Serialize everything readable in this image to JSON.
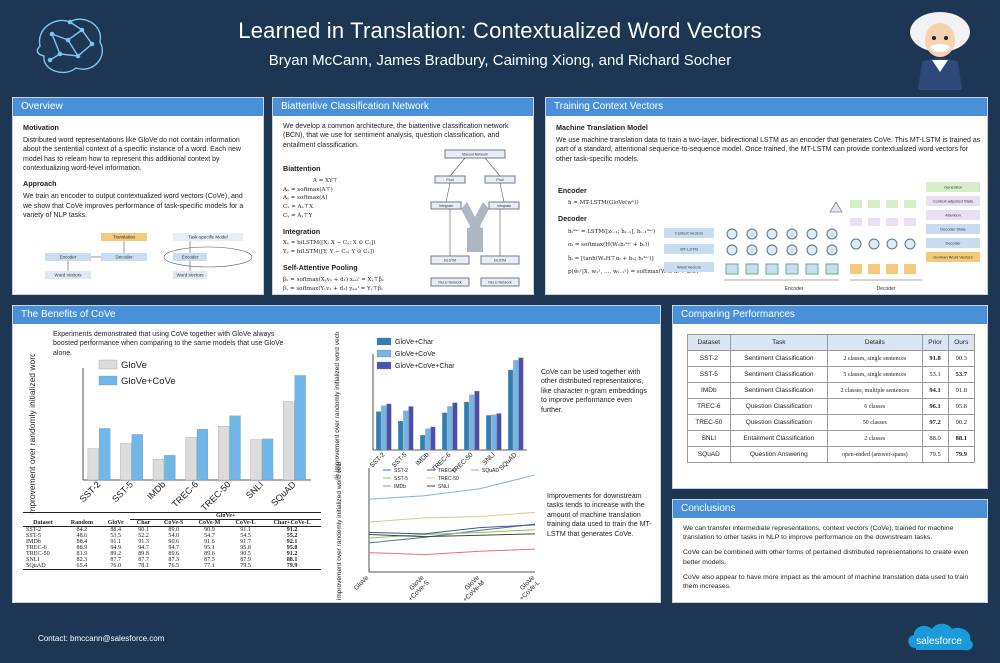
{
  "header": {
    "title": "Learned in Translation: Contextualized Word Vectors",
    "authors": "Bryan McCann, James Bradbury, Caiming Xiong, and Richard Socher"
  },
  "overview": {
    "heading": "Overview",
    "motivation_title": "Motivation",
    "motivation": "Distributed word representations like GloVe do not contain information about the sentential context of a specific instance of a word. Each new model has to relearn how to represent this additional context by contextualizing word-level information.",
    "approach_title": "Approach",
    "approach": "We train an encoder to output contextualized word vectors (CoVe), and we show that CoVe improves performance of task-specific models for a variety of NLP tasks.",
    "fig": {
      "translation": "Translation",
      "decoder": "Decoder",
      "encoder": "Encoder",
      "word_vectors": "Word Vectors",
      "task_model": "Task-specific Model",
      "encoder2": "Encoder",
      "word_vectors2": "Word Vectors"
    }
  },
  "bcn": {
    "heading": "Biattentive Classification Network",
    "intro": "We develop a common architecture, the biattentive classification network (BCN), that we use for sentiment analysis, question classification, and entailment classification.",
    "biattention": "Biattention",
    "integration": "Integration",
    "pooling": "Self-Attentive Pooling",
    "eqs": {
      "a": "A = XY⊤",
      "ax": "Aₓ = softmax(A⊤)",
      "ay": "Aᵧ = softmax(A)",
      "cx": "Cₓ = Aₓ⊤X",
      "cy": "Cᵧ = Aᵧ⊤Y",
      "x": "Xᵧ = biLSTM([X; X − Cᵧ; X ⊙ Cᵧ])",
      "y": "Yᵧ = biLSTM([Y; Y − Cₓ; Y ⊙ Cₓ])",
      "bx": "βₓ = softmax(Xᵧv₁ + d₁)   xₛₑₗᶠ = Xᵧ⊤βₓ",
      "by": "βᵧ = softmax(Yᵧv₁ + d₁)   yₛₑₗᶠ = Yᵧ⊤βᵧ"
    },
    "fig": {
      "maxout": "Maxout Network",
      "pool": "Pool",
      "integrate": "Integrate",
      "bilstm": "biLSTM",
      "relu": "ReLU Network"
    }
  },
  "training": {
    "heading": "Training Context Vectors",
    "mt_title": "Machine Translation Model",
    "mt": "We use machine translation data to train a two-layer, bidirectional LSTM as an encoder that generates CoVe. This MT-LSTM is trained as part of a standard, attentional sequence-to-sequence model. Once trained, the MT-LSTM can provide contextualized word vectors for other task-specific models.",
    "encoder": "Encoder",
    "decoder": "Decoder",
    "enc_eq": "h = MT-LSTM(GloVe(wˣ))",
    "dec_eqs": [
      "hₜᵈᵉᶜ = LSTM([zₜ₋₁; h̃ₜ₋₁], hₜ₋₁ᵈᵉᶜ)",
      "αₜ = softmax(H(W₁hₜᵈᵉᶜ + b₁))",
      "h̃ₜ = [tanh(W₂H⊤αₜ + b₂; hₜᵈᵉᶜ)]",
      "p(ŵₜʸ|X, w₁ʸ, …, wₜ₋₁ʸ) = softmax(Wₒᵤₜ h̃ₜ + bₒᵤₜ)"
    ],
    "fig": {
      "cv": "Context Vectors",
      "mt": "MT-LSTM",
      "wv": "Word Vectors",
      "gen": "Generator",
      "cas": "Context-adjusted State",
      "att": "Attention",
      "ds": "Decoder State",
      "dec": "Decoder",
      "gwv": "German Word Vectors",
      "encl": "Encoder",
      "decl": "Decoder"
    }
  },
  "benefits": {
    "heading": "The Benefits of CoVe",
    "intro": "Experiments demonstrated that using CoVe together with GloVe always boosted performance when comparing to the same models that use GloVe alone.",
    "text2": "CoVe can be used together with other distributed representations, like character n-gram embeddings to improve performance even further.",
    "text3": "Improvements for downstream tasks tends to increase with the amount of machine translation training data used to train the MT-LSTM that generates CoVe."
  },
  "chart_data": [
    {
      "type": "bar",
      "ylabel": "% improvement over randomly initialized word vectors",
      "categories": [
        "SST-2",
        "SST-5",
        "IMDb",
        "TREC-6",
        "TREC-50",
        "SNLI",
        "SQuAD"
      ],
      "ylim": [
        0,
        15
      ],
      "series": [
        {
          "name": "GloVe",
          "values": [
            4.2,
            4.9,
            2.8,
            5.7,
            7.2,
            5.4,
            10.5
          ],
          "color": "#dcdcdc"
        },
        {
          "name": "GloVe+CoVe",
          "values": [
            6.9,
            6.1,
            3.3,
            6.8,
            8.6,
            5.5,
            14.0
          ],
          "color": "#6fb7e8"
        }
      ]
    },
    {
      "type": "bar",
      "ylabel": "% improvement over randomly initialized word vectors",
      "categories": [
        "SST-2",
        "SST-5",
        "IMDb",
        "TREC-6",
        "TREC-50",
        "SNLI",
        "SQuAD"
      ],
      "ylim": [
        0,
        15
      ],
      "series": [
        {
          "name": "GloVe+Char",
          "values": [
            6.0,
            4.5,
            2.3,
            5.8,
            7.5,
            5.4,
            12.5
          ],
          "color": "#2c7fb8"
        },
        {
          "name": "GloVe+CoVe",
          "values": [
            6.9,
            6.1,
            3.3,
            6.8,
            8.6,
            5.5,
            14.0
          ],
          "color": "#74b6e3"
        },
        {
          "name": "GloVe+CoVe+Char",
          "values": [
            7.2,
            6.8,
            3.6,
            7.4,
            9.2,
            5.7,
            14.4
          ],
          "color": "#4b50b0"
        }
      ]
    },
    {
      "type": "line",
      "ylabel": "% improvement over randomly initialized word vectors",
      "x": [
        "GloVe",
        "GloVe +CoVe-S",
        "GloVe +CoVe-M",
        "GloVe +CoVe-L"
      ],
      "ylim": [
        0,
        15
      ],
      "series": [
        {
          "name": "SST-2",
          "values": [
            4.2,
            5.0,
            6.0,
            6.9
          ],
          "color": "#4a6fb5"
        },
        {
          "name": "SST-5",
          "values": [
            4.9,
            5.4,
            5.7,
            6.1
          ],
          "color": "#8bc34a"
        },
        {
          "name": "IMDb",
          "values": [
            2.8,
            2.5,
            3.0,
            3.3
          ],
          "color": "#e57373"
        },
        {
          "name": "TREC-6",
          "values": [
            5.7,
            5.5,
            6.4,
            6.8
          ],
          "color": "#3a5a8c"
        },
        {
          "name": "TREC-50",
          "values": [
            7.2,
            7.8,
            8.0,
            8.6
          ],
          "color": "#e0c48a"
        },
        {
          "name": "SNLI",
          "values": [
            5.4,
            5.1,
            5.3,
            5.5
          ],
          "color": "#444444"
        },
        {
          "name": "SQuAD",
          "values": [
            10.5,
            11.0,
            12.0,
            14.0
          ],
          "color": "#7fb2e5"
        }
      ]
    }
  ],
  "results": {
    "group": "GloVe+",
    "cols": [
      "Dataset",
      "Random",
      "GloVe",
      "Char",
      "CoVe-S",
      "CoVe-M",
      "CoVe-L",
      "Char+CoVe-L"
    ],
    "rows": [
      [
        "SST-2",
        "84.2",
        "88.4",
        "90.1",
        "89.0",
        "90.9",
        "91.1",
        "91.2"
      ],
      [
        "SST-5",
        "48.6",
        "53.5",
        "52.2",
        "54.0",
        "54.7",
        "54.5",
        "55.2"
      ],
      [
        "IMDb",
        "88.4",
        "91.1",
        "91.3",
        "90.6",
        "91.6",
        "91.7",
        "92.1"
      ],
      [
        "TREC-6",
        "88.9",
        "94.9",
        "94.7",
        "94.7",
        "95.1",
        "95.8",
        "95.8"
      ],
      [
        "TREC-50",
        "81.9",
        "89.2",
        "89.8",
        "89.6",
        "89.6",
        "90.5",
        "91.2"
      ],
      [
        "SNLI",
        "82.3",
        "87.7",
        "87.7",
        "87.3",
        "87.5",
        "87.9",
        "88.1"
      ],
      [
        "SQuAD",
        "65.4",
        "76.0",
        "78.1",
        "76.5",
        "77.1",
        "79.5",
        "79.9"
      ]
    ]
  },
  "comparing": {
    "heading": "Comparing Performances",
    "cols": [
      "Dataset",
      "Task",
      "Details",
      "Prior",
      "Ours"
    ],
    "rows": [
      [
        "SST-2",
        "Sentiment Classification",
        "2 classes, single sentences",
        "91.8",
        "90.3"
      ],
      [
        "SST-5",
        "Sentiment Classification",
        "5 classes, single sentences",
        "53.1",
        "53.7"
      ],
      [
        "IMDb",
        "Sentiment Classification",
        "2 classes, multiple sentences",
        "94.1",
        "91.8"
      ],
      [
        "TREC-6",
        "Question Classification",
        "6 classes",
        "96.1",
        "95.8"
      ],
      [
        "TREC-50",
        "Question Classification",
        "50 classes",
        "97.2",
        "90.2"
      ],
      [
        "SNLI",
        "Entailment Classification",
        "2 classes",
        "88.0",
        "88.1"
      ],
      [
        "SQuAD",
        "Question Answering",
        "open-ended (answer-spans)",
        "79.5",
        "79.9"
      ]
    ],
    "bold": [
      [
        0,
        3
      ],
      [
        1,
        4
      ],
      [
        2,
        3
      ],
      [
        3,
        3
      ],
      [
        4,
        3
      ],
      [
        5,
        4
      ],
      [
        6,
        4
      ]
    ]
  },
  "conclusions": {
    "heading": "Conclusions",
    "p1": "We can transfer intermediate representations, context vectors (CoVe), trained for machine translation to other tasks in NLP to improve performance on the downstream tasks.",
    "p2": "CoVe can be combined with other forms of pertained distributed representations to create even better models.",
    "p3": "CoVe also appear to have more impact as the amount of machine translation data used to train them increases."
  },
  "footer": {
    "contact": "Contact: bmccann@salesforce.com",
    "brand": "salesforce"
  }
}
